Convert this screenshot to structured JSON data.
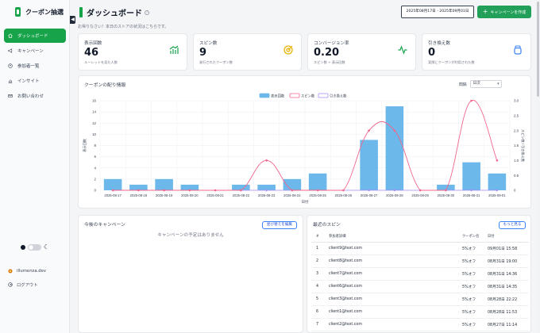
{
  "app": {
    "name": "クーポン抽選"
  },
  "sidebar": {
    "items": [
      {
        "label": "ダッシュボード",
        "icon": "home-icon"
      },
      {
        "label": "キャンペーン",
        "icon": "megaphone-icon"
      },
      {
        "label": "参加者一覧",
        "icon": "users-icon"
      },
      {
        "label": "インサイト",
        "icon": "chart-icon"
      },
      {
        "label": "お問い合わせ",
        "icon": "mail-icon"
      }
    ],
    "account_name": "illumenza.dev",
    "logout_label": "ログアウト"
  },
  "header": {
    "title": "ダッシュボード",
    "welcome": "お帰りなさい！本日のストアの状況はこちらです。",
    "date_range": "2025年08月17日 - 2025年09月01日",
    "create_label": "キャンペーンを作成"
  },
  "colors": {
    "accent": "#16a34a",
    "bar": "#6cb8ea",
    "spin_line": "#f2668b",
    "redeem": "#a78bfa"
  },
  "cards": [
    {
      "label": "表示回数",
      "value": "46",
      "sub": "ルーレットを見た人数",
      "icon": "bar-growth-icon",
      "icon_color": "#16a34a"
    },
    {
      "label": "スピン数",
      "value": "9",
      "sub": "発行されたクーポン数",
      "icon": "target-icon",
      "icon_color": "#eab308"
    },
    {
      "label": "コンバージョン率",
      "value": "0.20",
      "sub": "スピン数 ÷ 表示回数",
      "icon": "pulse-icon",
      "icon_color": "#16a34a"
    },
    {
      "label": "引き換え数",
      "value": "0",
      "sub": "実際にクーポンが利用された数",
      "icon": "jar-icon",
      "icon_color": "#3b82f6"
    }
  ],
  "chart_panel": {
    "title": "クーポンの配り情報",
    "interval_label": "間隔",
    "interval_value": "日次"
  },
  "chart_data": {
    "type": "bar",
    "categories": [
      "2025-08-17",
      "2025-08-18",
      "2025-08-19",
      "2025-08-20",
      "2025-08-21",
      "2025-08-22",
      "2025-08-23",
      "2025-08-24",
      "2025-08-25",
      "2025-08-26",
      "2025-08-27",
      "2025-08-28",
      "2025-08-29",
      "2025-08-30",
      "2025-08-31",
      "2025-09-01"
    ],
    "series": [
      {
        "name": "表示回数",
        "type": "bar",
        "axis": "left",
        "values": [
          2,
          1,
          2,
          1,
          0,
          1,
          1,
          2,
          3,
          0,
          9,
          15,
          0,
          1,
          5,
          3
        ]
      },
      {
        "name": "スピン数",
        "type": "line",
        "axis": "right",
        "values": [
          0,
          0,
          0,
          0,
          0,
          0,
          1,
          0,
          0,
          0,
          2,
          2,
          0,
          0,
          3,
          1
        ]
      },
      {
        "name": "引き換え数",
        "type": "line",
        "axis": "right",
        "values": [
          0,
          0,
          0,
          0,
          0,
          0,
          0,
          0,
          0,
          0,
          0,
          0,
          0,
          0,
          0,
          0
        ]
      }
    ],
    "xlabel": "日付",
    "ylabel": "表示回数",
    "y2label": "スピン数 / 引き換え数",
    "ylim": [
      0,
      16
    ],
    "y2lim": [
      0,
      3
    ],
    "yticks": [
      0,
      2,
      4,
      6,
      8,
      10,
      12,
      14,
      16
    ],
    "y2ticks": [
      "0",
      "0.5",
      "1.0",
      "1.5",
      "2.0",
      "2.5",
      "3.0"
    ]
  },
  "upcoming": {
    "title": "今後のキャンペーン",
    "edit_label": "並び替えを編集",
    "empty": "キャンペーンの予定はありません"
  },
  "recent": {
    "title": "最近のスピン",
    "more_label": "もっと見る",
    "headers": [
      "#",
      "参加者詳細",
      "クーポン名",
      "日付"
    ],
    "rows": [
      [
        "1",
        "client9@test.com",
        "5%オフ",
        "09月01日 15:58"
      ],
      [
        "2",
        "client8@test.com",
        "5%オフ",
        "08月31日 19:00"
      ],
      [
        "3",
        "client7@test.com",
        "5%オフ",
        "08月31日 14:36"
      ],
      [
        "4",
        "client6@test.com",
        "5%オフ",
        "08月31日 14:35"
      ],
      [
        "5",
        "client3@test.com",
        "5%オフ",
        "08月28日 22:22"
      ],
      [
        "6",
        "client1@test.com",
        "5%オフ",
        "08月28日 11:53"
      ],
      [
        "7",
        "client2@test.com",
        "5%オフ",
        "08月27日 11:14"
      ]
    ]
  }
}
